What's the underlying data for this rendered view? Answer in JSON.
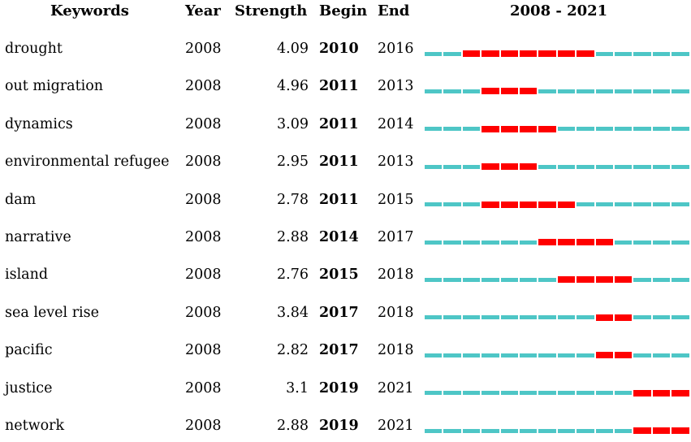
{
  "chart_data": {
    "type": "table",
    "title": "2008 - 2021",
    "columns": [
      "Keywords",
      "Year",
      "Strength",
      "Begin",
      "End",
      "2008 - 2021"
    ],
    "timeline": {
      "start": 2008,
      "end": 2021
    },
    "colors": {
      "inactive": "#4ec6c6",
      "burst": "#ff0000"
    },
    "rows": [
      {
        "keyword": "drought",
        "year": "2008",
        "strength": "4.09",
        "begin": "2010",
        "end": "2016"
      },
      {
        "keyword": "out migration",
        "year": "2008",
        "strength": "4.96",
        "begin": "2011",
        "end": "2013"
      },
      {
        "keyword": "dynamics",
        "year": "2008",
        "strength": "3.09",
        "begin": "2011",
        "end": "2014"
      },
      {
        "keyword": "environmental refugee",
        "year": "2008",
        "strength": "2.95",
        "begin": "2011",
        "end": "2013"
      },
      {
        "keyword": "dam",
        "year": "2008",
        "strength": "2.78",
        "begin": "2011",
        "end": "2015"
      },
      {
        "keyword": "narrative",
        "year": "2008",
        "strength": "2.88",
        "begin": "2014",
        "end": "2017"
      },
      {
        "keyword": "island",
        "year": "2008",
        "strength": "2.76",
        "begin": "2015",
        "end": "2018"
      },
      {
        "keyword": "sea level rise",
        "year": "2008",
        "strength": "3.84",
        "begin": "2017",
        "end": "2018"
      },
      {
        "keyword": "pacific",
        "year": "2008",
        "strength": "2.82",
        "begin": "2017",
        "end": "2018"
      },
      {
        "keyword": "justice",
        "year": "2008",
        "strength": "3.1",
        "begin": "2019",
        "end": "2021"
      },
      {
        "keyword": "network",
        "year": "2008",
        "strength": "2.88",
        "begin": "2019",
        "end": "2021"
      }
    ]
  }
}
